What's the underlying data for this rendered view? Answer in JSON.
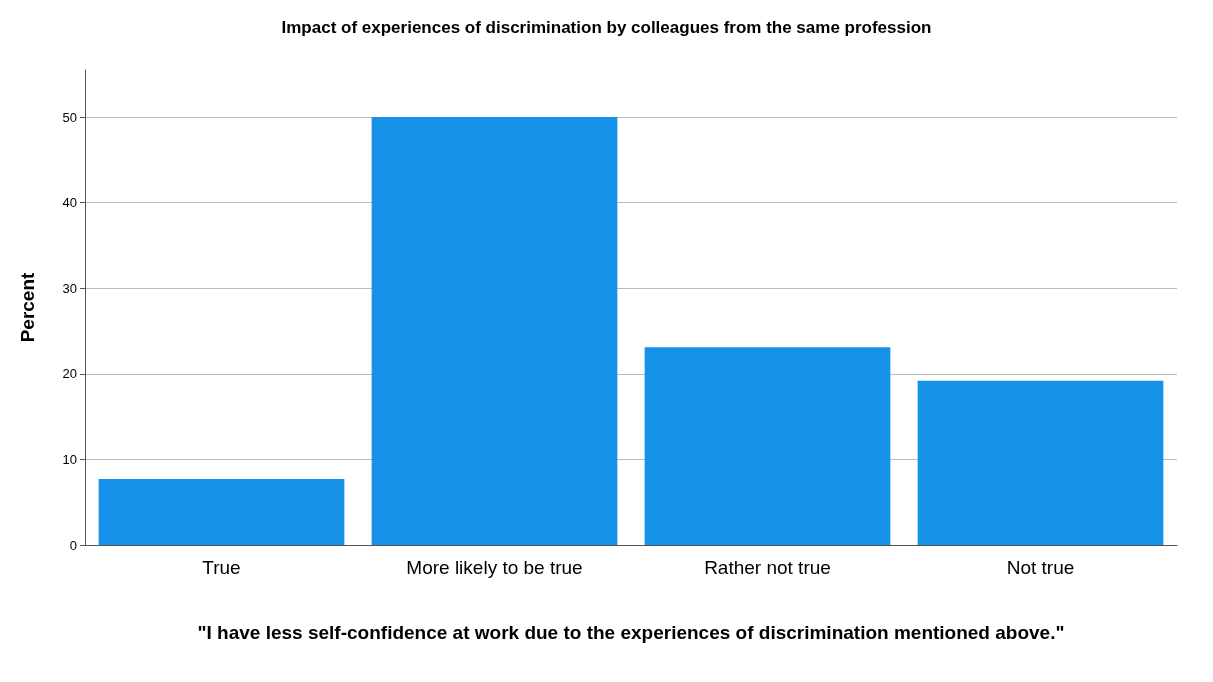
{
  "chart_data": {
    "type": "bar",
    "title": "Impact of experiences of discrimination by colleagues from the same profession",
    "xlabel": "\"I have less self-confidence at work due to the experiences of discrimination mentioned above.\"",
    "ylabel": "Percent",
    "categories": [
      "True",
      "More likely to be true",
      "Rather not true",
      "Not true"
    ],
    "values": [
      7.7,
      50,
      23.1,
      19.2
    ],
    "color": "#1591e8",
    "ylim": [
      0,
      55.5
    ],
    "yticks": [
      0,
      10,
      20,
      30,
      40,
      50
    ],
    "grid": "y"
  }
}
